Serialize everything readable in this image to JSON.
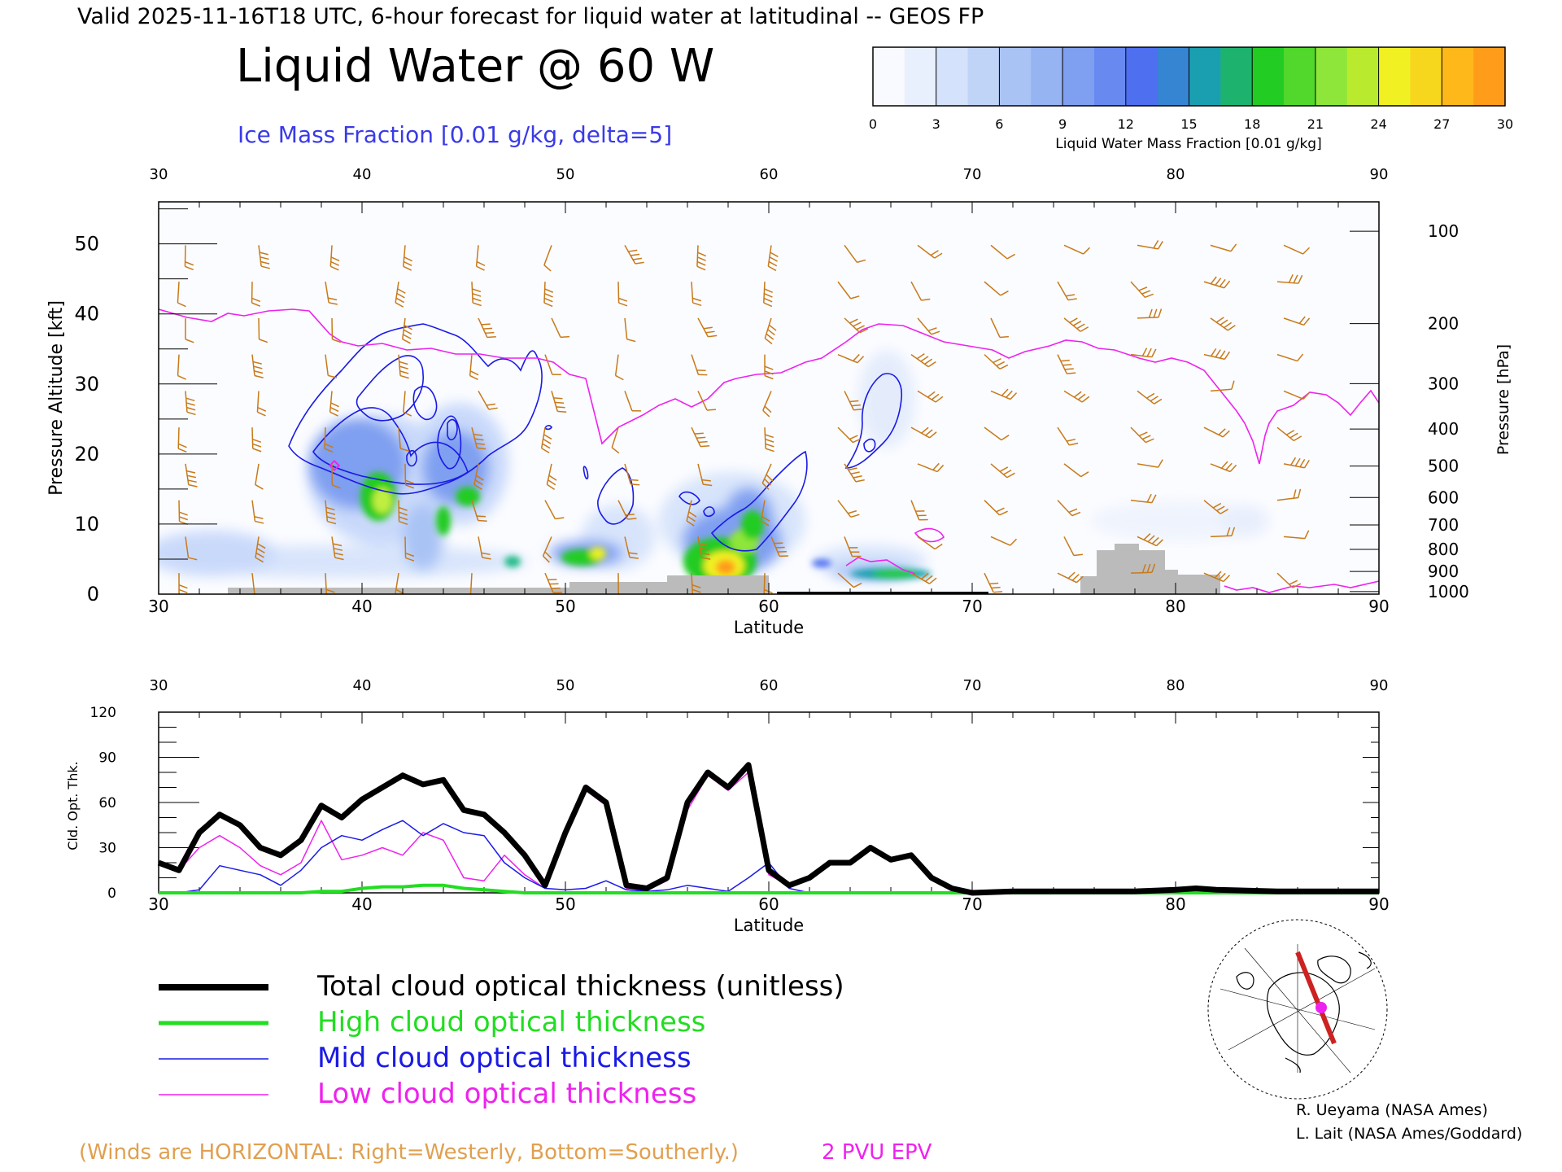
{
  "header": {
    "valid_line": "Valid 2025-11-16T18 UTC, 6-hour forecast for liquid water at latitudinal -- GEOS FP",
    "title": "Liquid Water @ 60 W",
    "subtitle": "Ice Mass Fraction [0.01 g/kg, delta=5]"
  },
  "colorbar": {
    "ticks": [
      "0",
      "3",
      "6",
      "9",
      "12",
      "15",
      "18",
      "21",
      "24",
      "27",
      "30"
    ],
    "label": "Liquid Water Mass Fraction [0.01 g/kg]",
    "colors": [
      "#f8faff",
      "#d4e2fb",
      "#a9c3f5",
      "#7f9ff0",
      "#4d6ff0",
      "#1a9fb0",
      "#22cc22",
      "#8ee63a",
      "#f0f022",
      "#ffb81a",
      "#ff7a1a",
      "#ff2a10"
    ]
  },
  "upper_panel": {
    "xlabel": "Latitude",
    "ylabel_left": "Pressure Altitude [kft]",
    "ylabel_right": "Pressure [hPa]",
    "x_ticks": [
      "30",
      "40",
      "50",
      "60",
      "70",
      "80",
      "90"
    ],
    "y_ticks_left": [
      "0",
      "10",
      "20",
      "30",
      "40",
      "50"
    ],
    "y_ticks_right": [
      "100",
      "200",
      "300",
      "400",
      "500",
      "600",
      "700",
      "800",
      "900",
      "1000"
    ],
    "pressure_levels": [
      100,
      200,
      300,
      400,
      500,
      600,
      700,
      800,
      900,
      1000
    ],
    "xlim": [
      30,
      90
    ],
    "ylim_kft": [
      0,
      56
    ],
    "wind_color": "#c87a1a",
    "epv_color": "#ee22ee",
    "ice_contour_color": "#1a1ae6"
  },
  "chart_data": {
    "type": "line",
    "title": "",
    "xlabel": "Latitude",
    "ylabel": "Cld. Opt. Thk.",
    "xlim": [
      30,
      90
    ],
    "ylim": [
      0,
      120
    ],
    "x_ticks": [
      "30",
      "40",
      "50",
      "60",
      "70",
      "80",
      "90"
    ],
    "y_ticks": [
      "0",
      "30",
      "60",
      "90",
      "120"
    ],
    "x": [
      30,
      31,
      32,
      33,
      34,
      35,
      36,
      37,
      38,
      39,
      40,
      41,
      42,
      43,
      44,
      45,
      46,
      47,
      48,
      49,
      50,
      51,
      52,
      53,
      54,
      55,
      56,
      57,
      58,
      59,
      60,
      61,
      62,
      63,
      64,
      65,
      66,
      67,
      68,
      69,
      70,
      72,
      75,
      78,
      80,
      81,
      82,
      85,
      88,
      90
    ],
    "series": [
      {
        "name": "Total cloud optical thickness (unitless)",
        "color": "#000000",
        "width": 7,
        "values": [
          20,
          15,
          40,
          52,
          45,
          30,
          25,
          35,
          58,
          50,
          62,
          70,
          78,
          72,
          75,
          55,
          52,
          40,
          25,
          5,
          40,
          70,
          60,
          5,
          3,
          10,
          60,
          80,
          70,
          85,
          15,
          5,
          10,
          20,
          20,
          30,
          22,
          25,
          10,
          3,
          0,
          1,
          1,
          1,
          2,
          3,
          2,
          1,
          1,
          1
        ]
      },
      {
        "name": "High cloud optical thickness",
        "color": "#22dd22",
        "width": 4,
        "values": [
          0,
          0,
          0,
          0,
          0,
          0,
          0,
          0,
          1,
          1,
          3,
          4,
          4,
          5,
          5,
          3,
          2,
          1,
          0,
          0,
          0,
          0,
          0,
          0,
          0,
          0,
          0,
          0,
          0,
          0,
          0,
          0,
          0,
          0,
          0,
          0,
          0,
          0,
          0,
          0,
          0,
          0,
          0,
          0,
          0,
          0,
          0,
          0,
          0,
          0
        ]
      },
      {
        "name": "Mid cloud optical thickness",
        "color": "#1a1ae6",
        "width": 1.5,
        "values": [
          0,
          0,
          2,
          18,
          15,
          12,
          5,
          15,
          30,
          38,
          35,
          42,
          48,
          38,
          46,
          40,
          38,
          20,
          10,
          3,
          2,
          3,
          8,
          2,
          1,
          2,
          5,
          3,
          1,
          10,
          20,
          3,
          0,
          0,
          0,
          0,
          0,
          0,
          0,
          0,
          0,
          0,
          0,
          0,
          0,
          0,
          0,
          0,
          0,
          0
        ]
      },
      {
        "name": "Low cloud optical thickness",
        "color": "#ee22ee",
        "width": 1.5,
        "values": [
          20,
          15,
          30,
          38,
          30,
          18,
          12,
          20,
          48,
          22,
          25,
          30,
          25,
          40,
          35,
          10,
          8,
          25,
          12,
          3,
          40,
          68,
          58,
          3,
          2,
          8,
          55,
          78,
          68,
          80,
          12,
          5,
          10,
          20,
          20,
          30,
          22,
          25,
          10,
          3,
          0,
          1,
          1,
          1,
          2,
          3,
          2,
          1,
          1,
          1
        ]
      }
    ]
  },
  "legend": [
    {
      "label": "Total cloud optical thickness (unitless)",
      "color": "#000000"
    },
    {
      "label": "High cloud optical thickness",
      "color": "#22dd22"
    },
    {
      "label": "Mid cloud optical thickness",
      "color": "#1a1ae6"
    },
    {
      "label": "Low cloud optical thickness",
      "color": "#ee22ee"
    }
  ],
  "footer": {
    "winds_note": "(Winds are HORIZONTAL: Right=Westerly, Bottom=Southerly.)",
    "epv_label": "2 PVU EPV",
    "credit1": "R. Ueyama (NASA Ames)",
    "credit2": "L. Lait (NASA Ames/Goddard)"
  }
}
